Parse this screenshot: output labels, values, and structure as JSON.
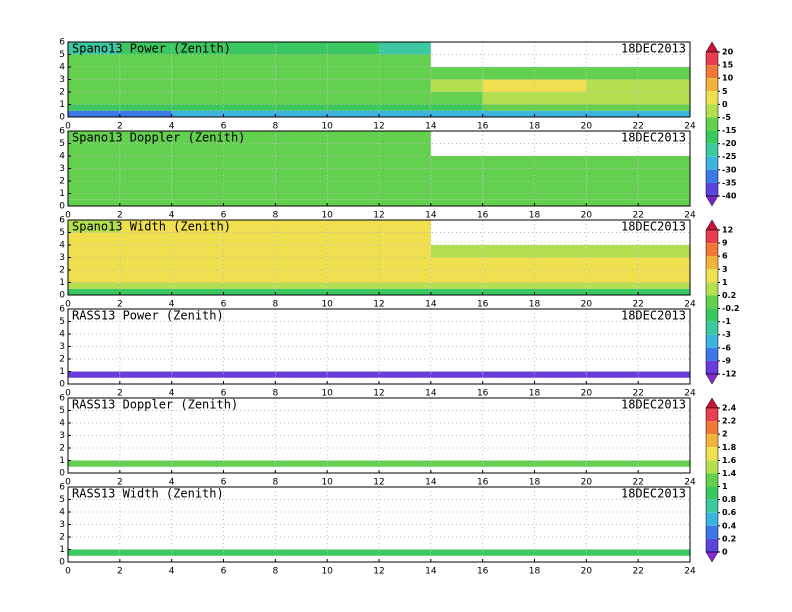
{
  "chart_data": [
    {
      "type": "heatmap",
      "title": "Spano13 Power (Zenith)",
      "date": "18DEC2013",
      "x_edges": [
        0,
        2,
        4,
        6,
        8,
        10,
        12,
        14,
        16,
        18,
        20,
        22,
        24
      ],
      "y_edges": [
        0,
        0.5,
        1,
        2,
        3,
        4,
        5,
        6
      ],
      "xlim": [
        0,
        24
      ],
      "ylim": [
        0,
        6
      ],
      "xticks": [
        0,
        2,
        4,
        6,
        8,
        10,
        12,
        14,
        16,
        18,
        20,
        22,
        24
      ],
      "yticks": [
        0,
        1,
        2,
        3,
        4,
        5,
        6
      ],
      "grid": true,
      "z": [
        [
          -35,
          -35,
          -30,
          -30,
          -30,
          -30,
          -30,
          -30,
          -30,
          -30,
          -30,
          -30
        ],
        [
          -20,
          -20,
          -20,
          -20,
          -20,
          -20,
          -20,
          -20,
          -15,
          -15,
          -15,
          -15
        ],
        [
          -15,
          -15,
          -15,
          -15,
          -15,
          -15,
          -15,
          -10,
          -5,
          -5,
          -5,
          -5
        ],
        [
          -12,
          -10,
          -12,
          -12,
          -12,
          -12,
          -12,
          -5,
          0,
          0,
          -5,
          -5
        ],
        [
          -12,
          -12,
          -12,
          -15,
          -15,
          -12,
          -15,
          -10,
          -12,
          -10,
          -12,
          -12
        ],
        [
          -15,
          -15,
          -15,
          -15,
          -15,
          -15,
          -15,
          null,
          null,
          null,
          null,
          null
        ],
        [
          -25,
          -20,
          -20,
          -20,
          -20,
          -20,
          -25,
          null,
          null,
          null,
          null,
          null
        ]
      ]
    },
    {
      "type": "heatmap",
      "title": "Spano13 Doppler (Zenith)",
      "date": "18DEC2013",
      "x_edges": [
        0,
        2,
        4,
        6,
        8,
        10,
        12,
        14,
        16,
        18,
        20,
        22,
        24
      ],
      "y_edges": [
        0,
        0.5,
        1,
        2,
        3,
        4,
        5,
        6
      ],
      "xlim": [
        0,
        24
      ],
      "ylim": [
        0,
        6
      ],
      "xticks": [
        0,
        2,
        4,
        6,
        8,
        10,
        12,
        14,
        16,
        18,
        20,
        22,
        24
      ],
      "yticks": [
        0,
        1,
        2,
        3,
        4,
        5,
        6
      ],
      "grid": true,
      "z": [
        [
          -12,
          -12,
          -12,
          -12,
          -12,
          -12,
          -12,
          -12,
          -12,
          -12,
          -12,
          -12
        ],
        [
          -12,
          -12,
          -12,
          -12,
          -12,
          -12,
          -12,
          -12,
          -12,
          -12,
          -12,
          -12
        ],
        [
          -12,
          -12,
          -12,
          -12,
          -12,
          -12,
          -12,
          -12,
          -12,
          -12,
          -12,
          -12
        ],
        [
          -12,
          -12,
          -12,
          -12,
          -12,
          -12,
          -12,
          -12,
          -12,
          -12,
          -12,
          -12
        ],
        [
          -12,
          -12,
          -12,
          -12,
          -12,
          -12,
          -12,
          -12,
          -12,
          -12,
          -12,
          -12
        ],
        [
          -12,
          -12,
          -12,
          -12,
          -12,
          -12,
          -12,
          null,
          null,
          null,
          null,
          null
        ],
        [
          -12,
          -12,
          -12,
          -12,
          -12,
          -12,
          -15,
          null,
          null,
          null,
          null,
          null
        ]
      ]
    },
    {
      "type": "heatmap",
      "title": "Spano13 Width (Zenith)",
      "date": "18DEC2013",
      "x_edges": [
        0,
        2,
        4,
        6,
        8,
        10,
        12,
        14,
        16,
        18,
        20,
        22,
        24
      ],
      "y_edges": [
        0,
        0.5,
        1,
        2,
        3,
        4,
        5,
        6
      ],
      "xlim": [
        0,
        24
      ],
      "ylim": [
        0,
        6
      ],
      "xticks": [
        0,
        2,
        4,
        6,
        8,
        10,
        12,
        14,
        16,
        18,
        20,
        22,
        24
      ],
      "yticks": [
        0,
        1,
        2,
        3,
        4,
        5,
        6
      ],
      "grid": true,
      "z": [
        [
          -1,
          -1,
          -1,
          -1,
          -1,
          -1,
          -1,
          -1,
          -1,
          -1,
          -1,
          -1
        ],
        [
          0.5,
          0.5,
          0.5,
          0.5,
          0.5,
          0.5,
          0.5,
          0.5,
          0.5,
          0.5,
          0.5,
          0.5
        ],
        [
          2,
          1,
          2,
          2,
          2,
          1,
          1,
          2,
          2,
          2,
          2,
          1
        ],
        [
          1,
          1,
          1,
          2,
          1,
          1,
          2,
          1,
          1,
          1,
          1,
          1
        ],
        [
          1,
          1,
          1,
          1,
          1,
          1,
          1,
          0.5,
          0.5,
          0.5,
          0.5,
          0.5
        ],
        [
          1,
          1,
          2,
          1,
          1,
          2,
          1,
          null,
          null,
          null,
          null,
          null
        ],
        [
          0.5,
          1,
          2,
          1,
          2,
          2,
          1,
          null,
          null,
          null,
          null,
          null
        ]
      ]
    },
    {
      "type": "heatmap",
      "title": "RASS13 Power (Zenith)",
      "date": "18DEC2013",
      "x_edges": [
        0,
        2,
        4,
        6,
        8,
        10,
        12,
        14,
        16,
        18,
        20,
        22,
        24
      ],
      "y_edges": [
        0,
        0.5,
        1,
        2,
        3,
        4,
        5,
        6
      ],
      "xlim": [
        0,
        24
      ],
      "ylim": [
        0,
        6
      ],
      "xticks": [
        0,
        2,
        4,
        6,
        8,
        10,
        12,
        14,
        16,
        18,
        20,
        22,
        24
      ],
      "yticks": [
        0,
        1,
        2,
        3,
        4,
        5,
        6
      ],
      "grid": true,
      "z": [
        [
          null,
          null,
          null,
          null,
          null,
          null,
          null,
          null,
          null,
          null,
          null,
          null
        ],
        [
          -10,
          -10,
          -10,
          -10,
          -10,
          -10,
          -10,
          -10,
          -10,
          -10,
          -10,
          -10
        ],
        [
          null,
          null,
          null,
          null,
          null,
          null,
          null,
          null,
          null,
          null,
          null,
          null
        ],
        [
          null,
          null,
          null,
          null,
          null,
          null,
          null,
          null,
          null,
          null,
          null,
          null
        ],
        [
          null,
          null,
          null,
          null,
          null,
          null,
          null,
          null,
          null,
          null,
          null,
          null
        ],
        [
          null,
          null,
          null,
          null,
          null,
          null,
          null,
          null,
          null,
          null,
          null,
          null
        ],
        [
          null,
          null,
          null,
          null,
          null,
          null,
          null,
          null,
          null,
          null,
          null,
          null
        ]
      ]
    },
    {
      "type": "heatmap",
      "title": "RASS13 Doppler (Zenith)",
      "date": "18DEC2013",
      "x_edges": [
        0,
        2,
        4,
        6,
        8,
        10,
        12,
        14,
        16,
        18,
        20,
        22,
        24
      ],
      "y_edges": [
        0,
        0.5,
        1,
        2,
        3,
        4,
        5,
        6
      ],
      "xlim": [
        0,
        24
      ],
      "ylim": [
        0,
        6
      ],
      "xticks": [
        0,
        2,
        4,
        6,
        8,
        10,
        12,
        14,
        16,
        18,
        20,
        22,
        24
      ],
      "yticks": [
        0,
        1,
        2,
        3,
        4,
        5,
        6
      ],
      "grid": true,
      "z": [
        [
          null,
          null,
          null,
          null,
          null,
          null,
          null,
          null,
          null,
          null,
          null,
          null
        ],
        [
          1.2,
          1.2,
          1.2,
          1.2,
          1.2,
          1.2,
          1.2,
          1.2,
          1.2,
          1.2,
          1.2,
          1.2
        ],
        [
          null,
          null,
          null,
          null,
          null,
          null,
          null,
          null,
          null,
          null,
          null,
          null
        ],
        [
          null,
          null,
          null,
          null,
          null,
          null,
          null,
          null,
          null,
          null,
          null,
          null
        ],
        [
          null,
          null,
          null,
          null,
          null,
          null,
          null,
          null,
          null,
          null,
          null,
          null
        ],
        [
          null,
          null,
          null,
          null,
          null,
          null,
          null,
          null,
          null,
          null,
          null,
          null
        ],
        [
          null,
          null,
          null,
          null,
          null,
          null,
          null,
          null,
          null,
          null,
          null,
          null
        ]
      ]
    },
    {
      "type": "heatmap",
      "title": "RASS13 Width (Zenith)",
      "date": "18DEC2013",
      "x_edges": [
        0,
        2,
        4,
        6,
        8,
        10,
        12,
        14,
        16,
        18,
        20,
        22,
        24
      ],
      "y_edges": [
        0,
        0.5,
        1,
        2,
        3,
        4,
        5,
        6
      ],
      "xlim": [
        0,
        24
      ],
      "ylim": [
        0,
        6
      ],
      "xticks": [
        0,
        2,
        4,
        6,
        8,
        10,
        12,
        14,
        16,
        18,
        20,
        22,
        24
      ],
      "yticks": [
        0,
        1,
        2,
        3,
        4,
        5,
        6
      ],
      "grid": true,
      "z": [
        [
          null,
          null,
          null,
          null,
          null,
          null,
          null,
          null,
          null,
          null,
          null,
          null
        ],
        [
          0.8,
          0.8,
          0.8,
          0.8,
          0.8,
          0.8,
          0.8,
          0.8,
          0.8,
          0.8,
          0.8,
          0.8
        ],
        [
          null,
          null,
          null,
          null,
          null,
          null,
          null,
          null,
          null,
          null,
          null,
          null
        ],
        [
          null,
          null,
          null,
          null,
          null,
          null,
          null,
          null,
          null,
          null,
          null,
          null
        ],
        [
          null,
          null,
          null,
          null,
          null,
          null,
          null,
          null,
          null,
          null,
          null,
          null
        ],
        [
          null,
          null,
          null,
          null,
          null,
          null,
          null,
          null,
          null,
          null,
          null,
          null
        ],
        [
          null,
          null,
          null,
          null,
          null,
          null,
          null,
          null,
          null,
          null,
          null,
          null
        ]
      ]
    }
  ],
  "colorbars": [
    {
      "ticks": [
        20,
        15,
        10,
        5,
        0,
        -5,
        -15,
        -20,
        -25,
        -30,
        -35,
        -40
      ],
      "colors": [
        "#c8143c",
        "#e84050",
        "#f07838",
        "#f0b43c",
        "#f0e050",
        "#b4e050",
        "#64d050",
        "#3cc860",
        "#3cc8a0",
        "#3cb4dc",
        "#3c78e6",
        "#5a46dc",
        "#7828c8"
      ]
    },
    {
      "ticks": [
        12,
        9,
        6,
        3,
        1,
        0.2,
        -0.2,
        -1,
        -3,
        -6,
        -9,
        -12
      ],
      "colors": [
        "#c8143c",
        "#e84050",
        "#f07838",
        "#f0b43c",
        "#f0e050",
        "#b4e050",
        "#64d050",
        "#3cc860",
        "#3cc8a0",
        "#3cb4dc",
        "#3c78e6",
        "#6a3cdc",
        "#8c28d2"
      ]
    },
    {
      "ticks": [
        2.4,
        2.2,
        2,
        1.8,
        1.6,
        1.4,
        1,
        0.8,
        0.6,
        0.4,
        0.2,
        0
      ],
      "colors": [
        "#c8143c",
        "#e84050",
        "#f07838",
        "#f0b43c",
        "#f0e050",
        "#b4e050",
        "#64d050",
        "#3cc860",
        "#3cc8a0",
        "#3cb4dc",
        "#3c78e6",
        "#5a46dc",
        "#8c28d2"
      ]
    }
  ]
}
